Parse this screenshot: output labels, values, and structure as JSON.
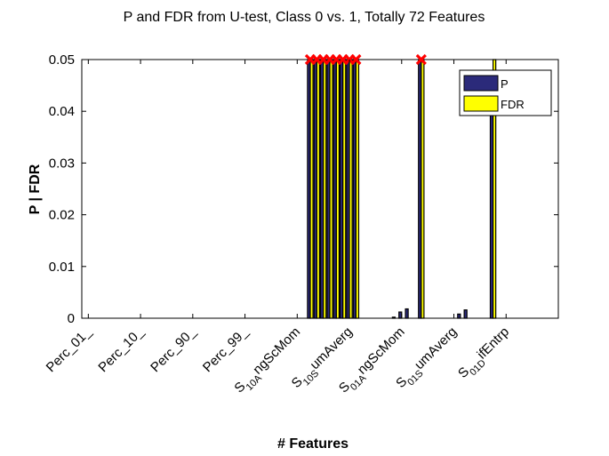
{
  "chart_data": {
    "type": "bar",
    "title": "P and FDR from U-test, Class 0 vs. 1, Totally 72 Features",
    "xlabel": "# Features",
    "ylabel": "P | FDR",
    "ylim": [
      0,
      0.05
    ],
    "yticks": [
      0,
      0.01,
      0.02,
      0.03,
      0.04,
      0.05
    ],
    "ytick_labels": [
      "0",
      "0.01",
      "0.02",
      "0.03",
      "0.04",
      "0.05"
    ],
    "x_tick_labels": [
      {
        "index": 1,
        "parts": [
          {
            "t": "Perc_01_"
          }
        ]
      },
      {
        "index": 9,
        "parts": [
          {
            "t": "Perc_10_"
          }
        ]
      },
      {
        "index": 17,
        "parts": [
          {
            "t": "Perc_90_"
          }
        ]
      },
      {
        "index": 25,
        "parts": [
          {
            "t": "Perc_99_"
          }
        ]
      },
      {
        "index": 33,
        "parts": [
          {
            "t": "S"
          },
          {
            "t": "10A",
            "sub": true
          },
          {
            "t": "ngScMom"
          }
        ]
      },
      {
        "index": 41,
        "parts": [
          {
            "t": "S"
          },
          {
            "t": "10S",
            "sub": true
          },
          {
            "t": "umAverg"
          }
        ]
      },
      {
        "index": 49,
        "parts": [
          {
            "t": "S"
          },
          {
            "t": "01A",
            "sub": true
          },
          {
            "t": "ngScMom"
          }
        ]
      },
      {
        "index": 57,
        "parts": [
          {
            "t": "S"
          },
          {
            "t": "01S",
            "sub": true
          },
          {
            "t": "umAverg"
          }
        ]
      },
      {
        "index": 65,
        "parts": [
          {
            "t": "S"
          },
          {
            "t": "01D",
            "sub": true
          },
          {
            "t": "ifEntrp"
          }
        ]
      }
    ],
    "legend": {
      "placement": "top-right",
      "entries": [
        "P",
        "FDR"
      ]
    },
    "colors": {
      "P": "#2b2a7a",
      "FDR": "#ffff00",
      "marker": "#ff0000",
      "outline": "#000000"
    },
    "feature_count": 72,
    "series": [
      {
        "name": "P",
        "values": [
          0,
          0,
          0,
          0,
          0,
          0,
          0,
          0,
          0,
          0,
          0,
          0,
          0,
          0,
          0,
          0,
          0,
          0,
          0,
          0,
          0,
          0,
          0,
          0,
          0,
          0,
          0,
          0,
          0,
          0,
          0,
          0,
          0,
          0,
          0.05,
          0.05,
          0.05,
          0.05,
          0.05,
          0.05,
          0.05,
          0.05,
          0,
          0,
          0,
          0,
          0,
          0.0002,
          0.0012,
          0.0018,
          0,
          0.05,
          0,
          0,
          0,
          0,
          0,
          0.0008,
          0.0016,
          0,
          0,
          0,
          0.04,
          0,
          0,
          0,
          0,
          0,
          0,
          0,
          0,
          0
        ]
      },
      {
        "name": "FDR",
        "values": [
          0,
          0,
          0,
          0,
          0,
          0,
          0,
          0,
          0,
          0,
          0,
          0,
          0,
          0,
          0,
          0,
          0,
          0,
          0,
          0,
          0,
          0,
          0,
          0,
          0,
          0,
          0,
          0,
          0,
          0,
          0,
          0,
          0,
          0,
          0.05,
          0.05,
          0.05,
          0.05,
          0.05,
          0.05,
          0.05,
          0.05,
          0,
          0,
          0,
          0,
          0,
          0,
          0,
          0,
          0,
          0.05,
          0,
          0,
          0,
          0,
          0,
          0,
          0,
          0,
          0,
          0,
          0.05,
          0,
          0,
          0,
          0,
          0,
          0,
          0,
          0,
          0
        ]
      }
    ],
    "markers_at_top": [
      35,
      36,
      37,
      38,
      39,
      40,
      41,
      42,
      52
    ]
  }
}
